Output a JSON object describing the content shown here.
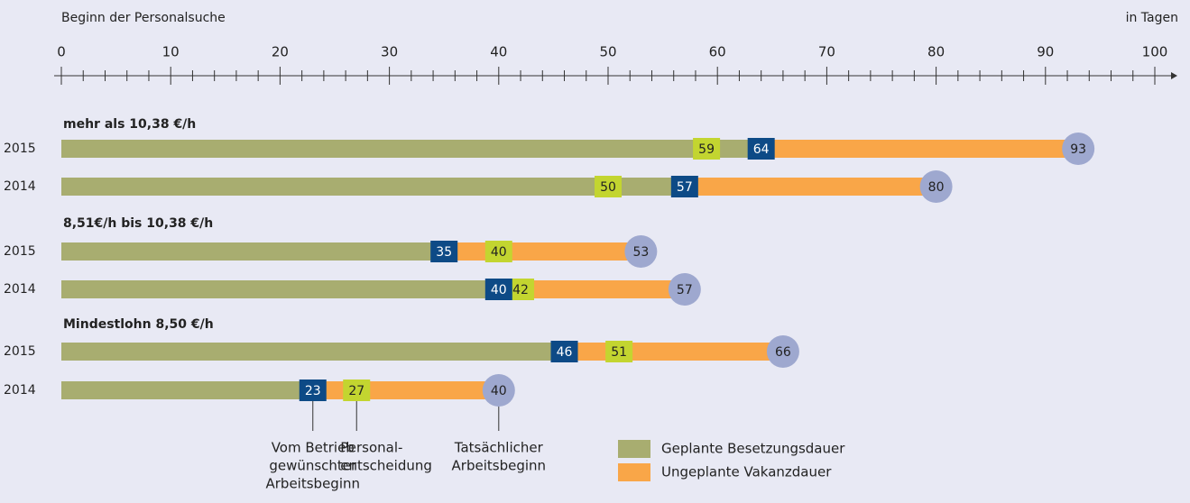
{
  "chart_data": {
    "type": "timeline",
    "axis_title": "Beginn der Personalsuche",
    "axis_unit": "in Tagen",
    "xlim": [
      0,
      100
    ],
    "xticks": [
      0,
      10,
      20,
      30,
      40,
      50,
      60,
      70,
      80,
      90,
      100
    ],
    "groups": [
      {
        "title": "mehr als 10,38 €/h",
        "rows": [
          {
            "year": "2015",
            "desired": 64,
            "decision": 59,
            "actual": 93
          },
          {
            "year": "2014",
            "desired": 57,
            "decision": 50,
            "actual": 80
          }
        ]
      },
      {
        "title": "8,51€/h bis 10,38 €/h",
        "rows": [
          {
            "year": "2015",
            "desired": 35,
            "decision": 40,
            "actual": 53
          },
          {
            "year": "2014",
            "desired": 40,
            "decision": 42,
            "actual": 57
          }
        ]
      },
      {
        "title": "Mindestlohn 8,50 €/h",
        "rows": [
          {
            "year": "2015",
            "desired": 46,
            "decision": 51,
            "actual": 66
          },
          {
            "year": "2014",
            "desired": 23,
            "decision": 27,
            "actual": 40
          }
        ]
      }
    ],
    "annotations": {
      "desired": [
        "Vom Betrieb",
        "gewünschter",
        "Arbeitsbeginn"
      ],
      "decision": [
        "Personal-",
        "entscheidung"
      ],
      "actual": [
        "Tatsächlicher",
        "Arbeitsbeginn"
      ]
    },
    "colors": {
      "desired": "#0d4a86",
      "decision": "#c3d530",
      "actual": "#9ea8cf"
    },
    "legend": [
      {
        "name": "Geplante Besetzungsdauer",
        "color": "#a8ad70"
      },
      {
        "name": "Ungeplante Vakanzdauer",
        "color": "#f9a648"
      }
    ]
  }
}
